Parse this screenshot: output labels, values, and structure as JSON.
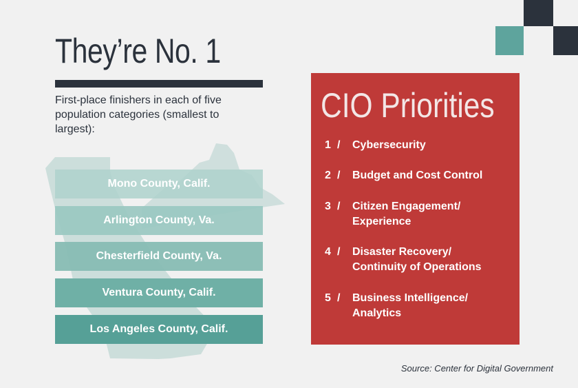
{
  "colors": {
    "dark": "#2b323c",
    "teal": "#5ea49d",
    "red": "#bf3a38",
    "background": "#f1f1f1"
  },
  "title": "They’re No. 1",
  "subtitle": "First-place finishers in each of five population categories (smallest to largest):",
  "winners": [
    "Mono County, Calif.",
    "Arlington County, Va.",
    "Chesterfield County, Va.",
    "Ventura County, Calif.",
    "Los Angeles County, Calif."
  ],
  "priorities_panel": {
    "title": "CIO Priorities",
    "items": [
      {
        "number": "1",
        "label": "Cybersecurity"
      },
      {
        "number": "2",
        "label": "Budget and Cost Control"
      },
      {
        "number": "3",
        "label": "Citizen Engagement/ Experience"
      },
      {
        "number": "4",
        "label": "Disaster Recovery/ Continuity of Operations"
      },
      {
        "number": "5",
        "label": "Business Intelligence/ Analytics"
      }
    ],
    "separator": "/"
  },
  "source": "Source: Center for Digital Government"
}
